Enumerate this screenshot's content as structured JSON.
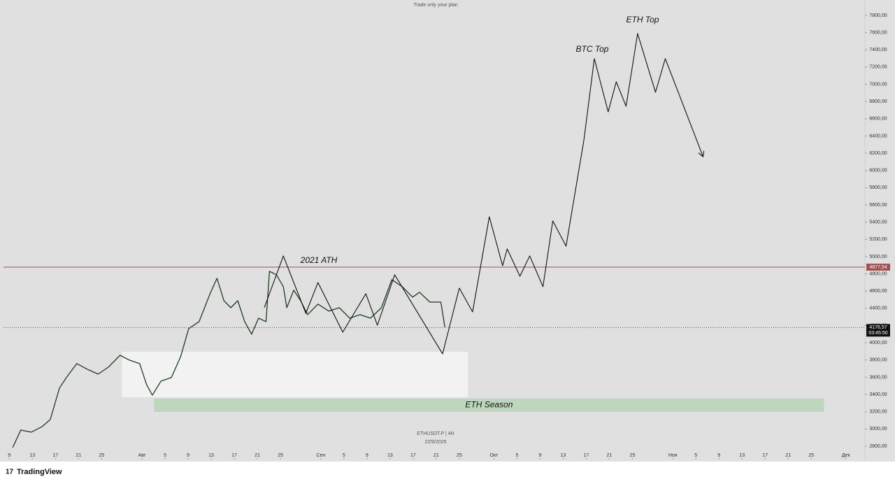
{
  "chart_data": {
    "type": "line",
    "header": "Trade only your plan",
    "symbol": "ETHUSDT.P | 4H",
    "date": "22/9/2025",
    "brand": "TradingView",
    "annotations": [
      "2021 ATH",
      "BTC Top",
      "ETH Top"
    ],
    "xlim": [
      8,
      157.3
    ],
    "ylim": [
      2662,
      7978
    ],
    "xticks": [
      {
        "value": 9,
        "label": "9"
      },
      {
        "value": 13,
        "label": "13"
      },
      {
        "value": 17,
        "label": "17"
      },
      {
        "value": 21,
        "label": "21"
      },
      {
        "value": 25,
        "label": "25"
      },
      {
        "value": 32,
        "label": "Авг"
      },
      {
        "value": 36,
        "label": "5"
      },
      {
        "value": 40,
        "label": "9"
      },
      {
        "value": 44,
        "label": "13"
      },
      {
        "value": 48,
        "label": "17"
      },
      {
        "value": 52,
        "label": "21"
      },
      {
        "value": 56,
        "label": "25"
      },
      {
        "value": 63,
        "label": "Сен"
      },
      {
        "value": 67,
        "label": "5"
      },
      {
        "value": 71,
        "label": "9"
      },
      {
        "value": 75,
        "label": "13"
      },
      {
        "value": 79,
        "label": "17"
      },
      {
        "value": 83,
        "label": "21"
      },
      {
        "value": 87,
        "label": "25"
      },
      {
        "value": 93,
        "label": "Окт"
      },
      {
        "value": 97,
        "label": "5"
      },
      {
        "value": 101,
        "label": "9"
      },
      {
        "value": 105,
        "label": "13"
      },
      {
        "value": 109,
        "label": "17"
      },
      {
        "value": 113,
        "label": "21"
      },
      {
        "value": 117,
        "label": "25"
      },
      {
        "value": 124,
        "label": "Ноя"
      },
      {
        "value": 128,
        "label": "5"
      },
      {
        "value": 132,
        "label": "9"
      },
      {
        "value": 136,
        "label": "13"
      },
      {
        "value": 140,
        "label": "17"
      },
      {
        "value": 144,
        "label": "21"
      },
      {
        "value": 148,
        "label": "25"
      },
      {
        "value": 154,
        "label": "Дек"
      }
    ],
    "yticks": [
      {
        "value": 2800,
        "label": "2800,00"
      },
      {
        "value": 3000,
        "label": "3000,00"
      },
      {
        "value": 3200,
        "label": "3200,00"
      },
      {
        "value": 3400,
        "label": "3400,00"
      },
      {
        "value": 3600,
        "label": "3600,00"
      },
      {
        "value": 3800,
        "label": "3800,00"
      },
      {
        "value": 4000,
        "label": "4000,00"
      },
      {
        "value": 4200,
        "label": "4200,00"
      },
      {
        "value": 4400,
        "label": "4400,00"
      },
      {
        "value": 4600,
        "label": "4600,00"
      },
      {
        "value": 4800,
        "label": "4800,00"
      },
      {
        "value": 5000,
        "label": "5000,00"
      },
      {
        "value": 5200,
        "label": "5200,00"
      },
      {
        "value": 5400,
        "label": "5400,00"
      },
      {
        "value": 5600,
        "label": "5600,00"
      },
      {
        "value": 5800,
        "label": "5800,00"
      },
      {
        "value": 6000,
        "label": "6000,00"
      },
      {
        "value": 6200,
        "label": "6200,00"
      },
      {
        "value": 6400,
        "label": "6400,00"
      },
      {
        "value": 6600,
        "label": "6600,00"
      },
      {
        "value": 6800,
        "label": "6800,00"
      },
      {
        "value": 7000,
        "label": "7000,00"
      },
      {
        "value": 7200,
        "label": "7200,00"
      },
      {
        "value": 7400,
        "label": "7400,00"
      },
      {
        "value": 7600,
        "label": "7600,00"
      },
      {
        "value": 7800,
        "label": "7800,00"
      }
    ],
    "price": {
      "color": "#1e3d1e",
      "x": [
        9.6,
        11.0,
        12.8,
        14.7,
        16.1,
        17.7,
        18.9,
        20.7,
        22.5,
        24.4,
        26.2,
        28.2,
        29.8,
        31.6,
        32.8,
        33.8,
        35.3,
        37.1,
        38.7,
        40.1,
        41.9,
        43.8,
        45.0,
        46.2,
        47.4,
        48.6,
        49.8,
        51.0,
        52.2,
        53.5,
        54.1,
        55.3,
        56.5,
        57.1,
        58.3,
        59.5,
        60.7,
        62.5,
        64.4,
        66.2,
        68.0,
        69.8,
        71.6,
        73.5,
        75.3,
        77.1,
        78.9,
        80.1,
        81.9,
        83.8,
        84.5
      ],
      "values": [
        2784,
        2987,
        2962,
        3027,
        3108,
        3474,
        3596,
        3758,
        3693,
        3636,
        3718,
        3855,
        3799,
        3758,
        3514,
        3392,
        3555,
        3596,
        3839,
        4164,
        4245,
        4569,
        4748,
        4488,
        4407,
        4488,
        4245,
        4099,
        4285,
        4245,
        4829,
        4789,
        4651,
        4407,
        4610,
        4488,
        4326,
        4448,
        4367,
        4407,
        4285,
        4326,
        4285,
        4407,
        4732,
        4651,
        4529,
        4586,
        4472,
        4472,
        4180
      ]
    },
    "projection": {
      "color": "#111111",
      "x": [
        53.2,
        56.5,
        60.4,
        62.5,
        66.8,
        70.8,
        72.8,
        75.8,
        84.1,
        87.0,
        89.3,
        92.2,
        94.5,
        95.3,
        97.5,
        99.2,
        101.5,
        103.2,
        105.5,
        108.6,
        110.4,
        112.8,
        114.2,
        115.9,
        117.9,
        121.0,
        122.7,
        129.2
      ],
      "values": [
        4407,
        5008,
        4342,
        4699,
        4123,
        4569,
        4204,
        4789,
        3871,
        4634,
        4358,
        5462,
        4894,
        5089,
        4772,
        5008,
        4651,
        5414,
        5121,
        6355,
        7297,
        6680,
        7029,
        6745,
        7589,
        6907,
        7297,
        6168
      ]
    },
    "zones": [
      {
        "x": [
          28.5,
          88.5
        ],
        "y": [
          3368,
          3896
        ],
        "color": "#f2f2f2"
      },
      {
        "x": [
          34.1,
          150.2
        ],
        "y": [
          3198,
          3352
        ],
        "color": "#bdd6bd",
        "label": "ETH Season"
      }
    ],
    "levels": [
      {
        "value": 4877.54,
        "label": "4877,54",
        "color": "#a05050"
      }
    ],
    "last_price": {
      "value": 4176.57,
      "label": "4176,57",
      "countdown": "03:45:50"
    }
  }
}
